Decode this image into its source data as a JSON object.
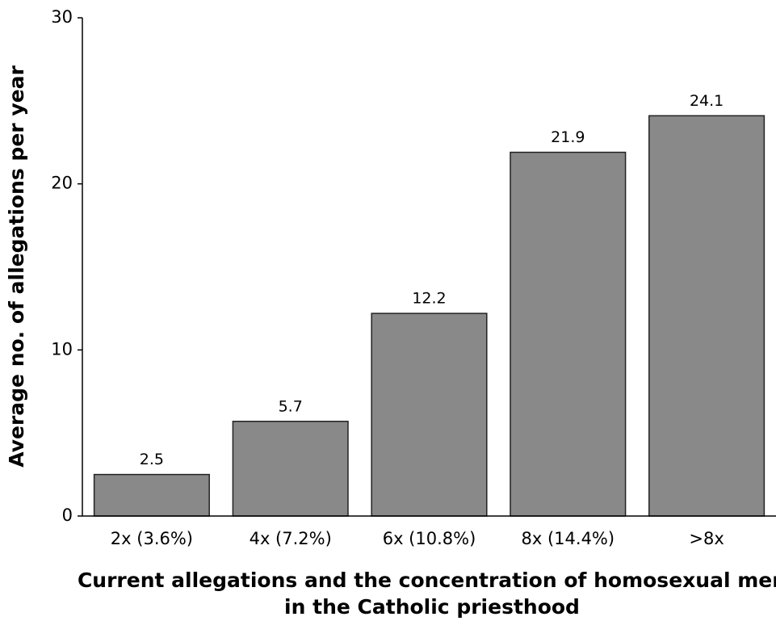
{
  "chart_data": {
    "type": "bar",
    "ylabel": "Average no. of allegations per year",
    "xlabel": [
      "Current allegations and the concentration of homosexual men",
      "in the Catholic priesthood"
    ],
    "categories": [
      "2x (3.6%)",
      "4x (7.2%)",
      "6x (10.8%)",
      "8x (14.4%)",
      ">8x"
    ],
    "values": [
      2.5,
      5.7,
      12.2,
      21.9,
      24.1
    ],
    "color": "#898989",
    "ylim": [
      0,
      30
    ],
    "yticks": [
      0,
      10,
      20,
      30
    ],
    "grid": false
  }
}
